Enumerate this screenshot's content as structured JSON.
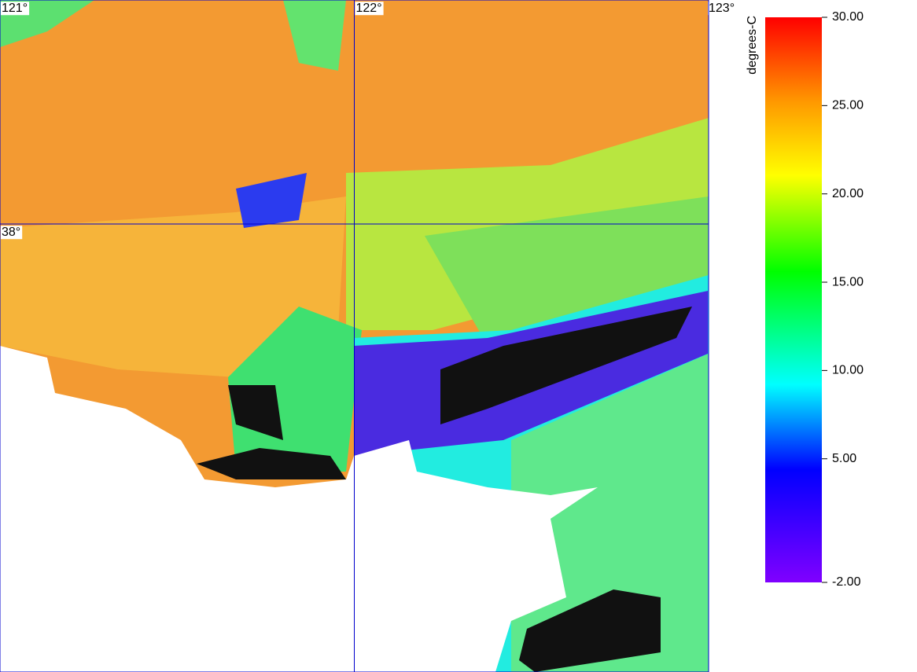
{
  "map": {
    "lon_lim": [
      121,
      123
    ],
    "lat_lim": [
      37.0,
      38.5
    ],
    "lon_lines": [
      {
        "value": 121,
        "label": "121°"
      },
      {
        "value": 122,
        "label": "122°"
      },
      {
        "value": 123,
        "label": "123°"
      }
    ],
    "lat_lines": [
      {
        "value": 38,
        "label": "38°"
      }
    ],
    "grid_color": "#0000cc",
    "colorbar": {
      "unit": "degrees-C",
      "lim": [
        -2,
        30
      ],
      "ticks": [
        {
          "value": 30,
          "label": "30.00"
        },
        {
          "value": 25,
          "label": "25.00"
        },
        {
          "value": 20,
          "label": "20.00"
        },
        {
          "value": 15,
          "label": "15.00"
        },
        {
          "value": 10,
          "label": "10.00"
        },
        {
          "value": 5,
          "label": "5.00"
        },
        {
          "value": -2,
          "label": "-2.00"
        }
      ]
    }
  }
}
